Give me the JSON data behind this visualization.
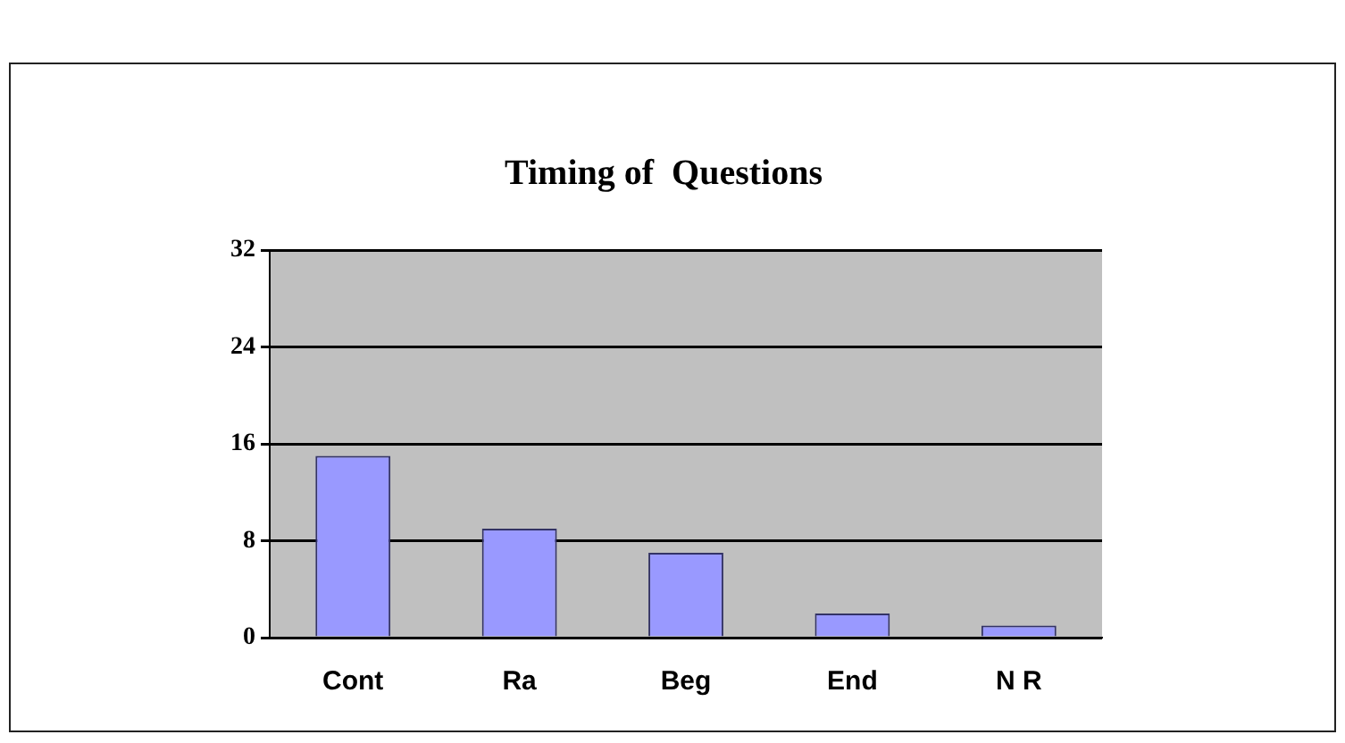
{
  "chart_data": {
    "type": "bar",
    "title": "Timing of  Questions",
    "categories": [
      "Cont",
      "Ra",
      "Beg",
      "End",
      "N R"
    ],
    "values": [
      15,
      9,
      7,
      2,
      1
    ],
    "color": "#9999ff",
    "ylim": [
      0,
      32
    ],
    "yticks": [
      0,
      8,
      16,
      24,
      32
    ],
    "grid": "y"
  }
}
